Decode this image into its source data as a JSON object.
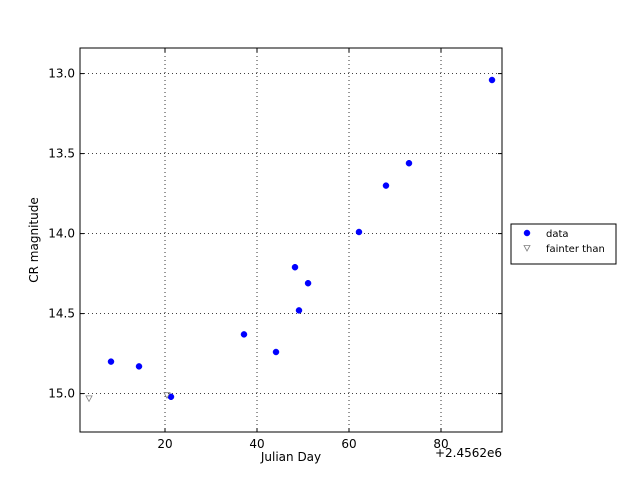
{
  "chart_data": {
    "type": "scatter",
    "xlabel": "Julian Day",
    "ylabel": "CR magnitude",
    "x_offset_label": "+2.4562e6",
    "xlim": [
      1.52,
      93.26
    ],
    "ylim": [
      15.24,
      12.84
    ],
    "xticks": [
      20,
      40,
      60,
      80
    ],
    "yticks": [
      {
        "value": 13,
        "label": "13.0"
      },
      {
        "value": 13.5,
        "label": "13.5"
      },
      {
        "value": 14,
        "label": "14.0"
      },
      {
        "value": 14.5,
        "label": "14.5"
      },
      {
        "value": 15,
        "label": "15.0"
      }
    ],
    "y_inverted": true,
    "grid": true,
    "legend": "right",
    "series": [
      {
        "name": "data",
        "color": "#0000ff",
        "marker": "circle",
        "x": [
          8.26,
          14.35,
          21.3,
          37.17,
          44.13,
          48.26,
          49.13,
          51.1,
          62.17,
          68.04,
          73.04,
          91.09
        ],
        "values": [
          14.8,
          14.83,
          15.02,
          14.63,
          14.74,
          14.21,
          14.48,
          14.31,
          13.99,
          13.7,
          13.56,
          13.04
        ]
      },
      {
        "name": "fainter than",
        "color": "#808080",
        "marker": "triangle-down",
        "x": [
          3.48,
          20.43
        ],
        "values": [
          15.03,
          15.01
        ]
      }
    ]
  }
}
